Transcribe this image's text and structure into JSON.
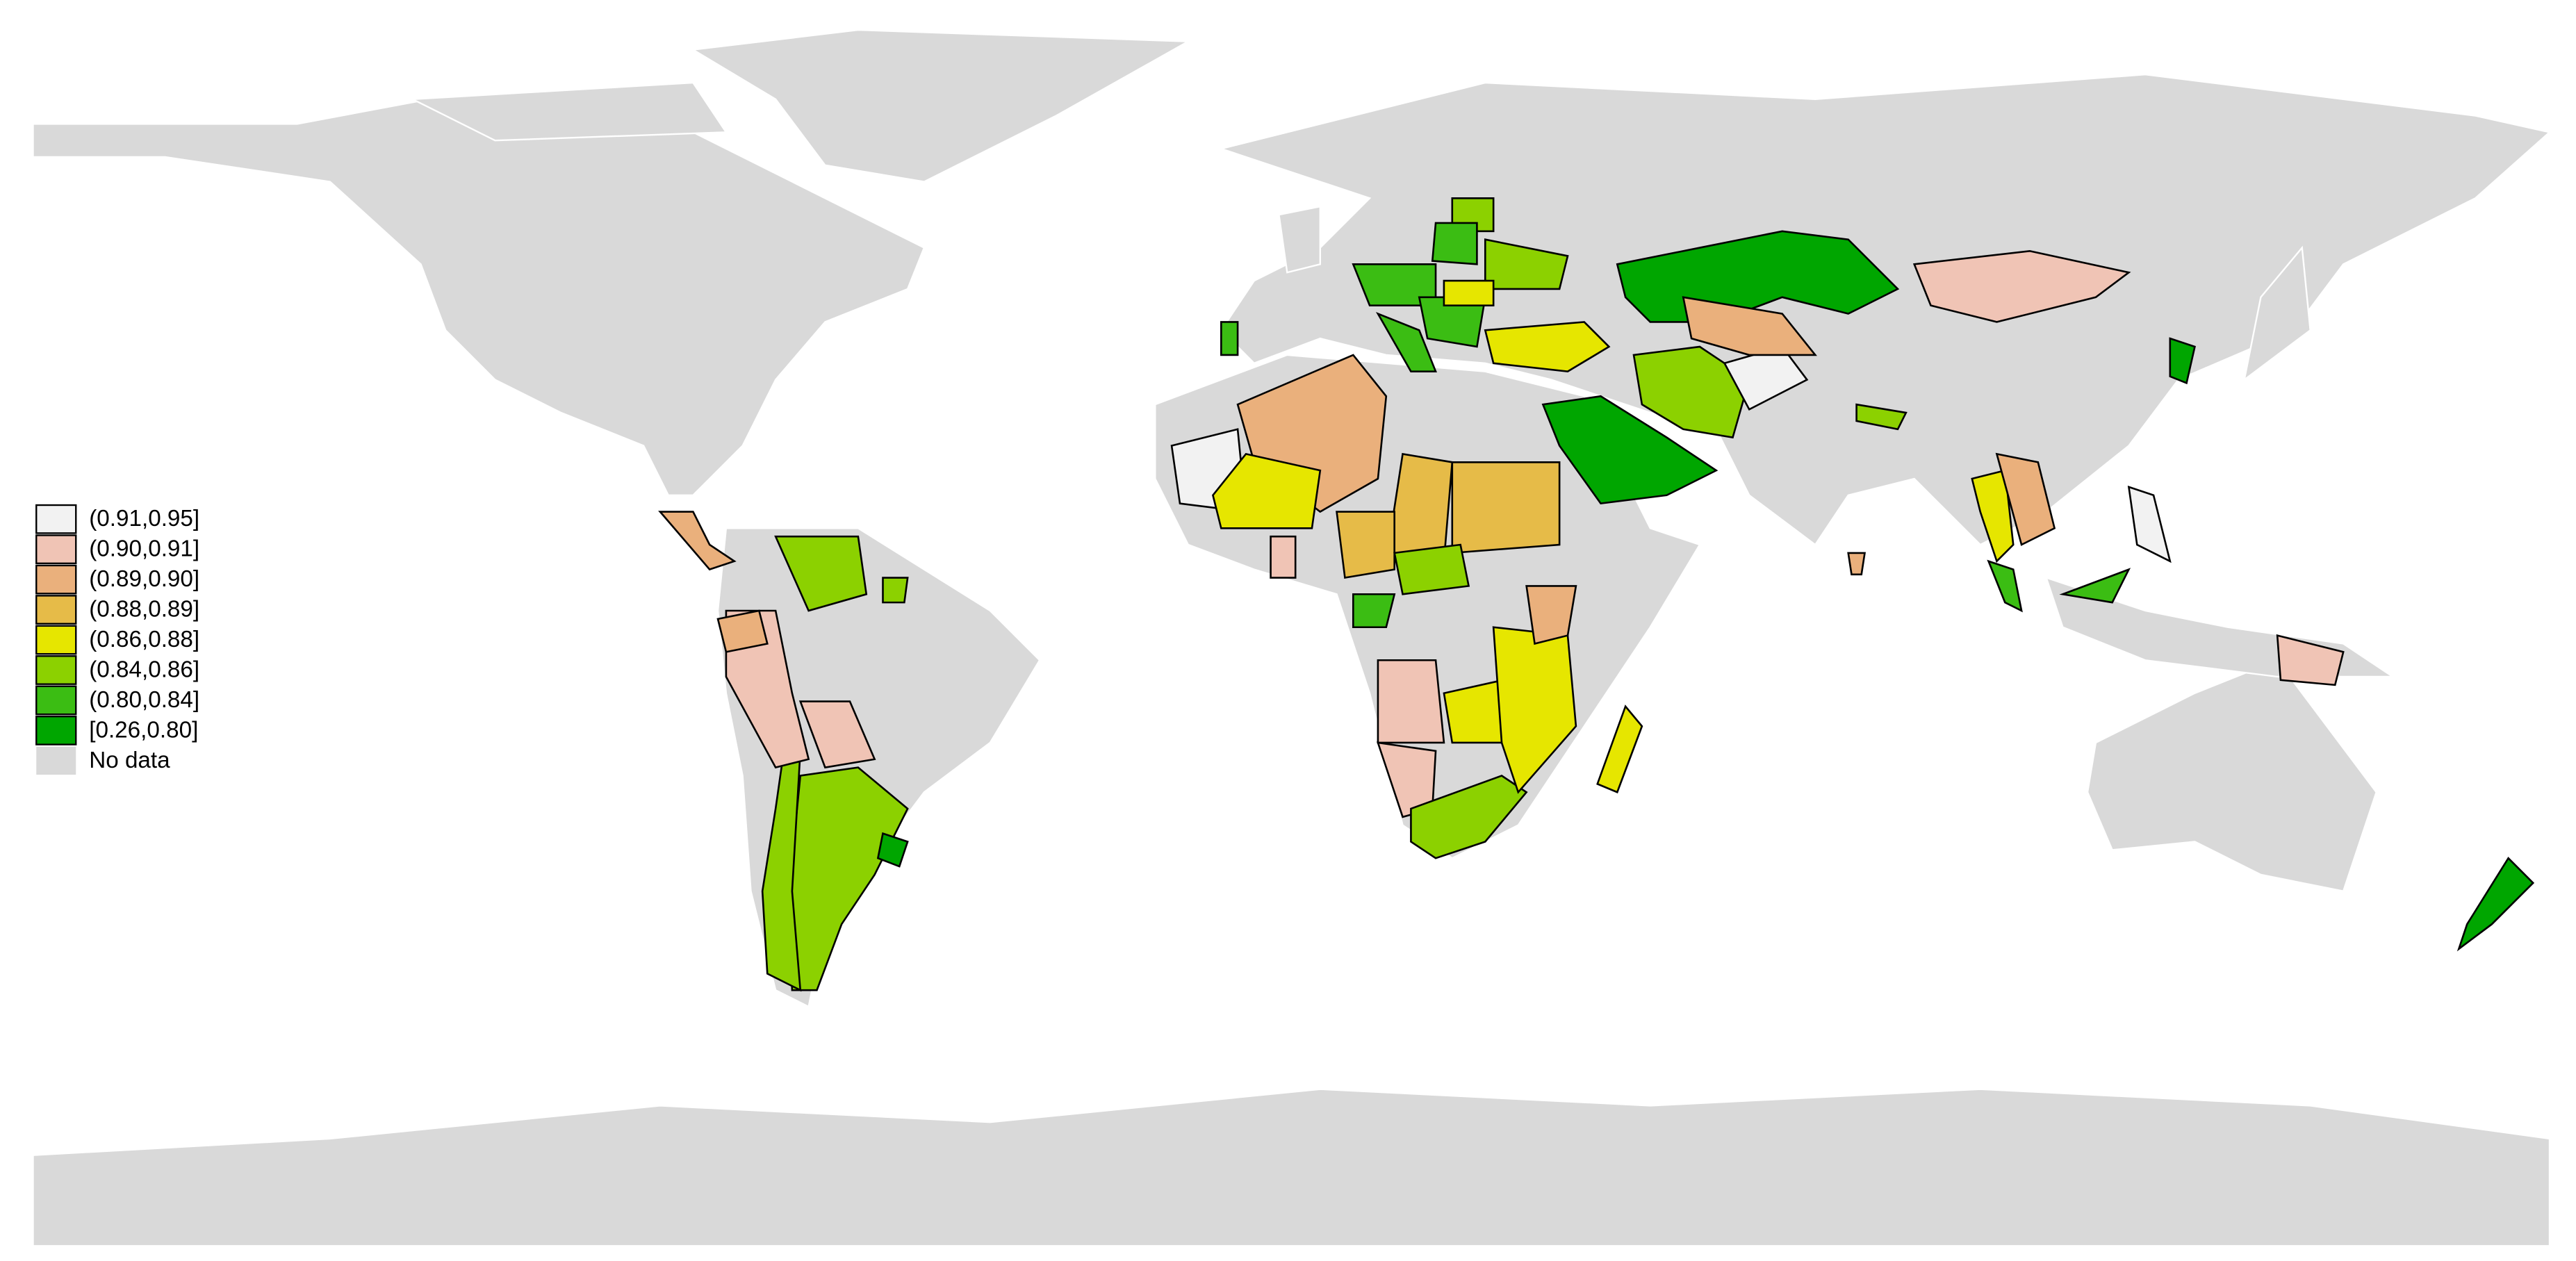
{
  "legend": {
    "items": [
      {
        "label": "(0.91,0.95]",
        "color": "#f2f2f2"
      },
      {
        "label": "(0.90,0.91]",
        "color": "#f0c4b5"
      },
      {
        "label": "(0.89,0.90]",
        "color": "#eab07c"
      },
      {
        "label": "(0.88,0.89]",
        "color": "#e6bb48"
      },
      {
        "label": "(0.86,0.88]",
        "color": "#e6e600"
      },
      {
        "label": "(0.84,0.86]",
        "color": "#8cd100"
      },
      {
        "label": "(0.80,0.84]",
        "color": "#3bbd13"
      },
      {
        "label": "[0.26,0.80]",
        "color": "#00a600"
      },
      {
        "label": "No data",
        "color": "#d9d9d9"
      }
    ]
  }
}
